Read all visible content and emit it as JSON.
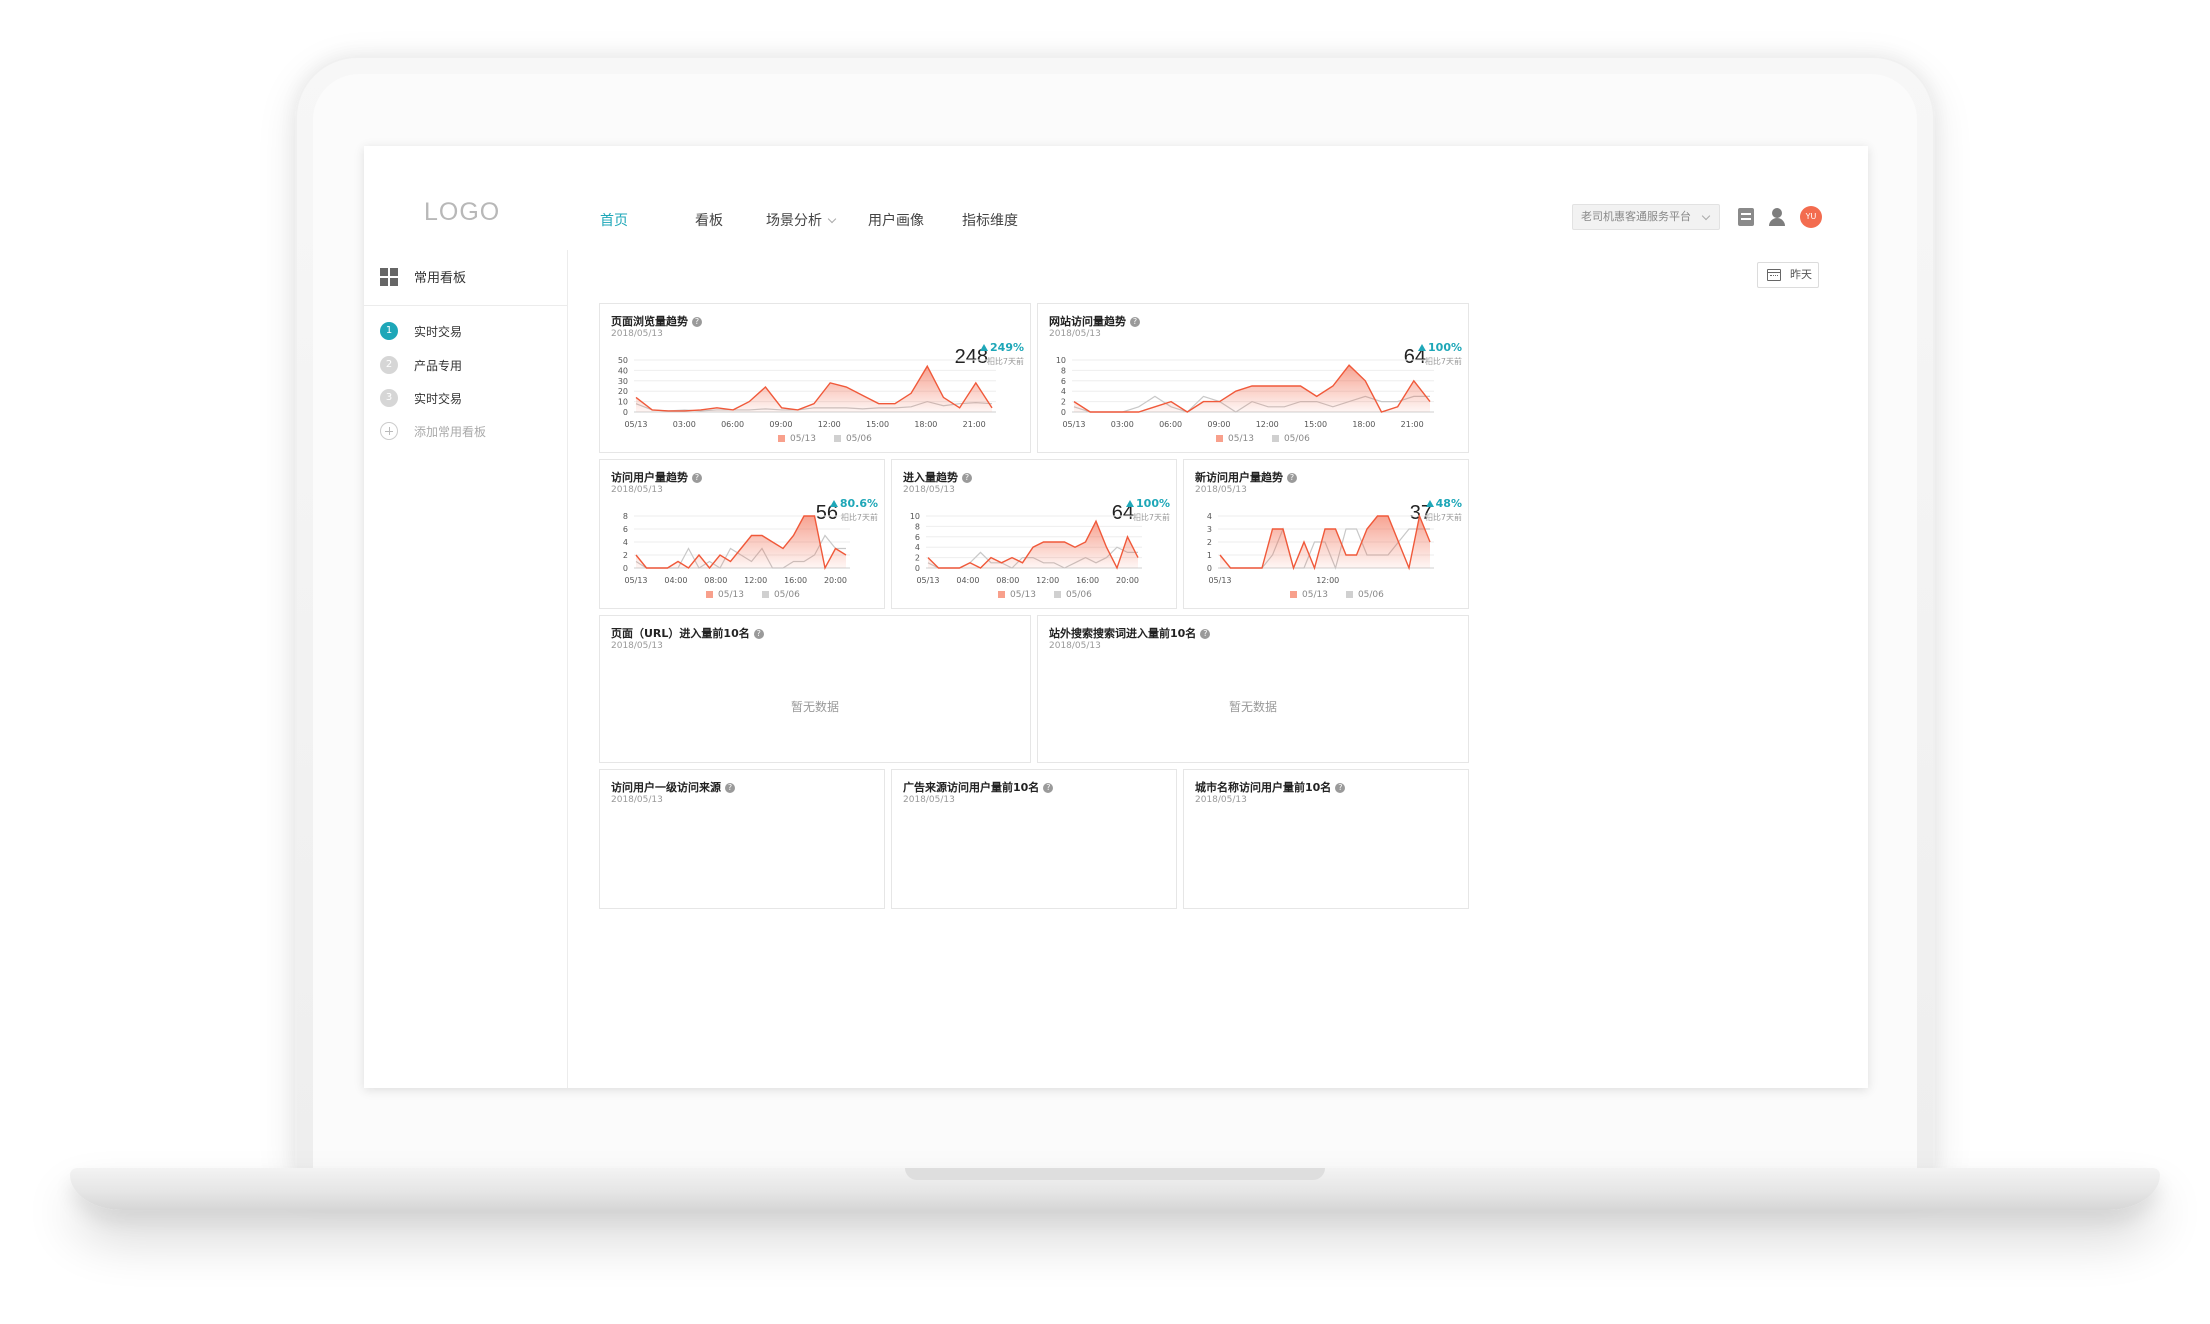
{
  "app": {
    "logo": "LOGO"
  },
  "nav": {
    "items": [
      {
        "label": "首页",
        "active": true
      },
      {
        "label": "看板",
        "active": false
      },
      {
        "label": "场景分析",
        "active": false,
        "dropdown": true
      },
      {
        "label": "用户画像",
        "active": false
      },
      {
        "label": "指标维度",
        "active": false
      }
    ],
    "platform_select": "老司机惠客通服务平台",
    "avatar": "YU"
  },
  "sidebar": {
    "header": "常用看板",
    "items": [
      {
        "num": "1",
        "label": "实时交易",
        "active": true
      },
      {
        "num": "2",
        "label": "产品专用",
        "active": false
      },
      {
        "num": "3",
        "label": "实时交易",
        "active": false
      }
    ],
    "add_label": "添加常用看板"
  },
  "toolbar": {
    "date_label": "昨天"
  },
  "colors": {
    "accent": "#1ea7b8",
    "series_current": "#f0593a",
    "series_prev": "#c8c8c8"
  },
  "cards": {
    "pv": {
      "title": "页面浏览量趋势",
      "date": "2018/05/13",
      "value": "248",
      "delta": "249%",
      "delta_sub": "相比7天前"
    },
    "uv": {
      "title": "网站访问量趋势",
      "date": "2018/05/13",
      "value": "64",
      "delta": "100%",
      "delta_sub": "相比7天前"
    },
    "visitors": {
      "title": "访问用户量趋势",
      "date": "2018/05/13",
      "value": "56",
      "delta": "80.6%",
      "delta_sub": "相比7天前"
    },
    "entries": {
      "title": "进入量趋势",
      "date": "2018/05/13",
      "value": "64",
      "delta": "100%",
      "delta_sub": "相比7天前"
    },
    "new_visitors": {
      "title": "新访问用户量趋势",
      "date": "2018/05/13",
      "value": "37",
      "delta": "48%",
      "delta_sub": "相比7天前"
    },
    "top_url": {
      "title": "页面（URL）进入量前10名",
      "date": "2018/05/13",
      "empty": "暂无数据"
    },
    "top_search": {
      "title": "站外搜索搜索词进入量前10名",
      "date": "2018/05/13",
      "empty": "暂无数据"
    },
    "sources": {
      "title": "访问用户一级访问来源",
      "date": "2018/05/13"
    },
    "ad_sources": {
      "title": "广告来源访问用户量前10名",
      "date": "2018/05/13"
    },
    "cities": {
      "title": "城市名称访问用户量前10名",
      "date": "2018/05/13"
    }
  },
  "chart_data": [
    {
      "id": "pv",
      "type": "area",
      "x_tick_labels": [
        "05/13",
        "03:00",
        "06:00",
        "09:00",
        "12:00",
        "15:00",
        "18:00",
        "21:00"
      ],
      "ylim": [
        0,
        50
      ],
      "y_ticks": [
        0,
        10,
        20,
        30,
        40,
        50
      ],
      "series": [
        {
          "name": "05/13",
          "values": [
            14,
            2,
            1,
            1,
            2,
            4,
            2,
            10,
            24,
            4,
            2,
            8,
            28,
            24,
            16,
            8,
            8,
            18,
            44,
            14,
            4,
            28,
            4
          ]
        },
        {
          "name": "05/06",
          "values": [
            8,
            2,
            1,
            2,
            1,
            2,
            2,
            2,
            3,
            2,
            2,
            4,
            4,
            4,
            3,
            4,
            4,
            5,
            10,
            6,
            8,
            9,
            8
          ]
        }
      ]
    },
    {
      "id": "uv",
      "type": "area",
      "x_tick_labels": [
        "05/13",
        "03:00",
        "06:00",
        "09:00",
        "12:00",
        "15:00",
        "18:00",
        "21:00"
      ],
      "ylim": [
        0,
        10
      ],
      "y_ticks": [
        0,
        2,
        4,
        6,
        8,
        10
      ],
      "series": [
        {
          "name": "05/13",
          "values": [
            2,
            0,
            0,
            0,
            0,
            1,
            2,
            0,
            2,
            2,
            4,
            5,
            5,
            5,
            5,
            3,
            5,
            9,
            6,
            0,
            1,
            6,
            2
          ]
        },
        {
          "name": "05/06",
          "values": [
            1,
            0,
            0,
            0,
            1,
            3,
            1,
            0,
            3,
            2,
            0,
            2,
            1,
            1,
            2,
            2,
            1,
            2,
            3,
            2,
            2,
            3,
            3
          ]
        }
      ]
    },
    {
      "id": "visitors",
      "type": "area",
      "x_tick_labels": [
        "05/13",
        "04:00",
        "08:00",
        "12:00",
        "16:00",
        "20:00"
      ],
      "ylim": [
        0,
        8
      ],
      "y_ticks": [
        0,
        2,
        4,
        6,
        8
      ],
      "series": [
        {
          "name": "05/13",
          "values": [
            2,
            0,
            0,
            0,
            1,
            0,
            2,
            0,
            2,
            1,
            3,
            5,
            5,
            4,
            3,
            5,
            8,
            8,
            0,
            3,
            2
          ]
        },
        {
          "name": "05/06",
          "values": [
            1,
            0,
            0,
            0,
            0,
            3,
            0,
            1,
            0,
            3,
            2,
            1,
            3,
            0,
            0,
            1,
            1,
            2,
            5,
            3,
            3
          ]
        }
      ]
    },
    {
      "id": "entries",
      "type": "area",
      "x_tick_labels": [
        "05/13",
        "04:00",
        "08:00",
        "12:00",
        "16:00",
        "20:00"
      ],
      "ylim": [
        0,
        10
      ],
      "y_ticks": [
        0,
        2,
        4,
        6,
        8,
        10
      ],
      "series": [
        {
          "name": "05/13",
          "values": [
            2,
            0,
            0,
            0,
            1,
            0,
            2,
            1,
            2,
            1,
            4,
            5,
            5,
            5,
            4,
            5,
            9,
            4,
            0,
            6,
            2
          ]
        },
        {
          "name": "05/06",
          "values": [
            1,
            0,
            0,
            0,
            1,
            3,
            1,
            1,
            0,
            2,
            2,
            1,
            1,
            0,
            1,
            2,
            1,
            2,
            4,
            3,
            3
          ]
        }
      ]
    },
    {
      "id": "new_visitors",
      "type": "area",
      "x_tick_labels": [
        "05/13",
        "12:00"
      ],
      "ylim": [
        0,
        4
      ],
      "y_ticks": [
        0,
        1,
        2,
        3,
        4
      ],
      "series": [
        {
          "name": "05/13",
          "values": [
            1,
            0,
            0,
            0,
            0,
            3,
            3,
            0,
            2,
            0,
            3,
            3,
            1,
            1,
            3,
            4,
            4,
            2,
            0,
            4,
            2
          ]
        },
        {
          "name": "05/06",
          "values": [
            0,
            0,
            0,
            0,
            0,
            1,
            3,
            0,
            0,
            2,
            2,
            0,
            3,
            3,
            1,
            1,
            1,
            2,
            3,
            3,
            3
          ]
        }
      ]
    }
  ]
}
